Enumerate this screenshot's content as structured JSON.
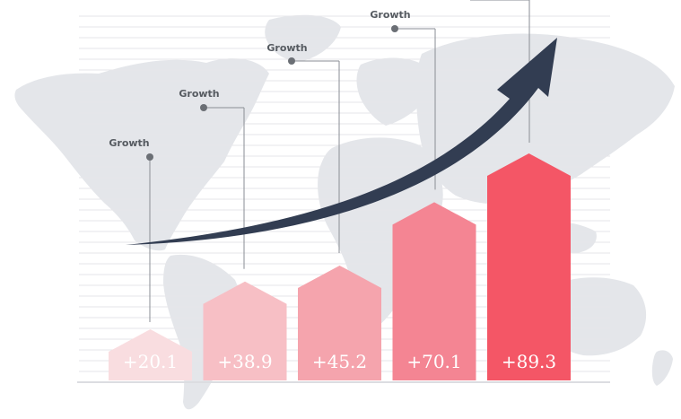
{
  "chart_data": {
    "type": "bar",
    "title": "",
    "xlabel": "",
    "ylabel": "",
    "categories": [
      "",
      "",
      "",
      "",
      ""
    ],
    "values": [
      20.1,
      38.9,
      45.2,
      70.1,
      89.3
    ],
    "value_labels": [
      "+20.1",
      "+38.9",
      "+45.2",
      "+70.1",
      "+89.3"
    ],
    "annotations": [
      "Growth",
      "Growth",
      "Growth",
      "Growth",
      ""
    ],
    "ylim": [
      0,
      100
    ],
    "grid": true,
    "legend": "none",
    "trend_arrow": "up-right",
    "colors": [
      "#f9dde0",
      "#f7bfc5",
      "#f5a4ad",
      "#f48593",
      "#f45666"
    ],
    "arrow_color": "#323d52",
    "map_color": "#e4e6ea",
    "grid_color": "#e6e6e9",
    "label_color": "#555a60"
  }
}
